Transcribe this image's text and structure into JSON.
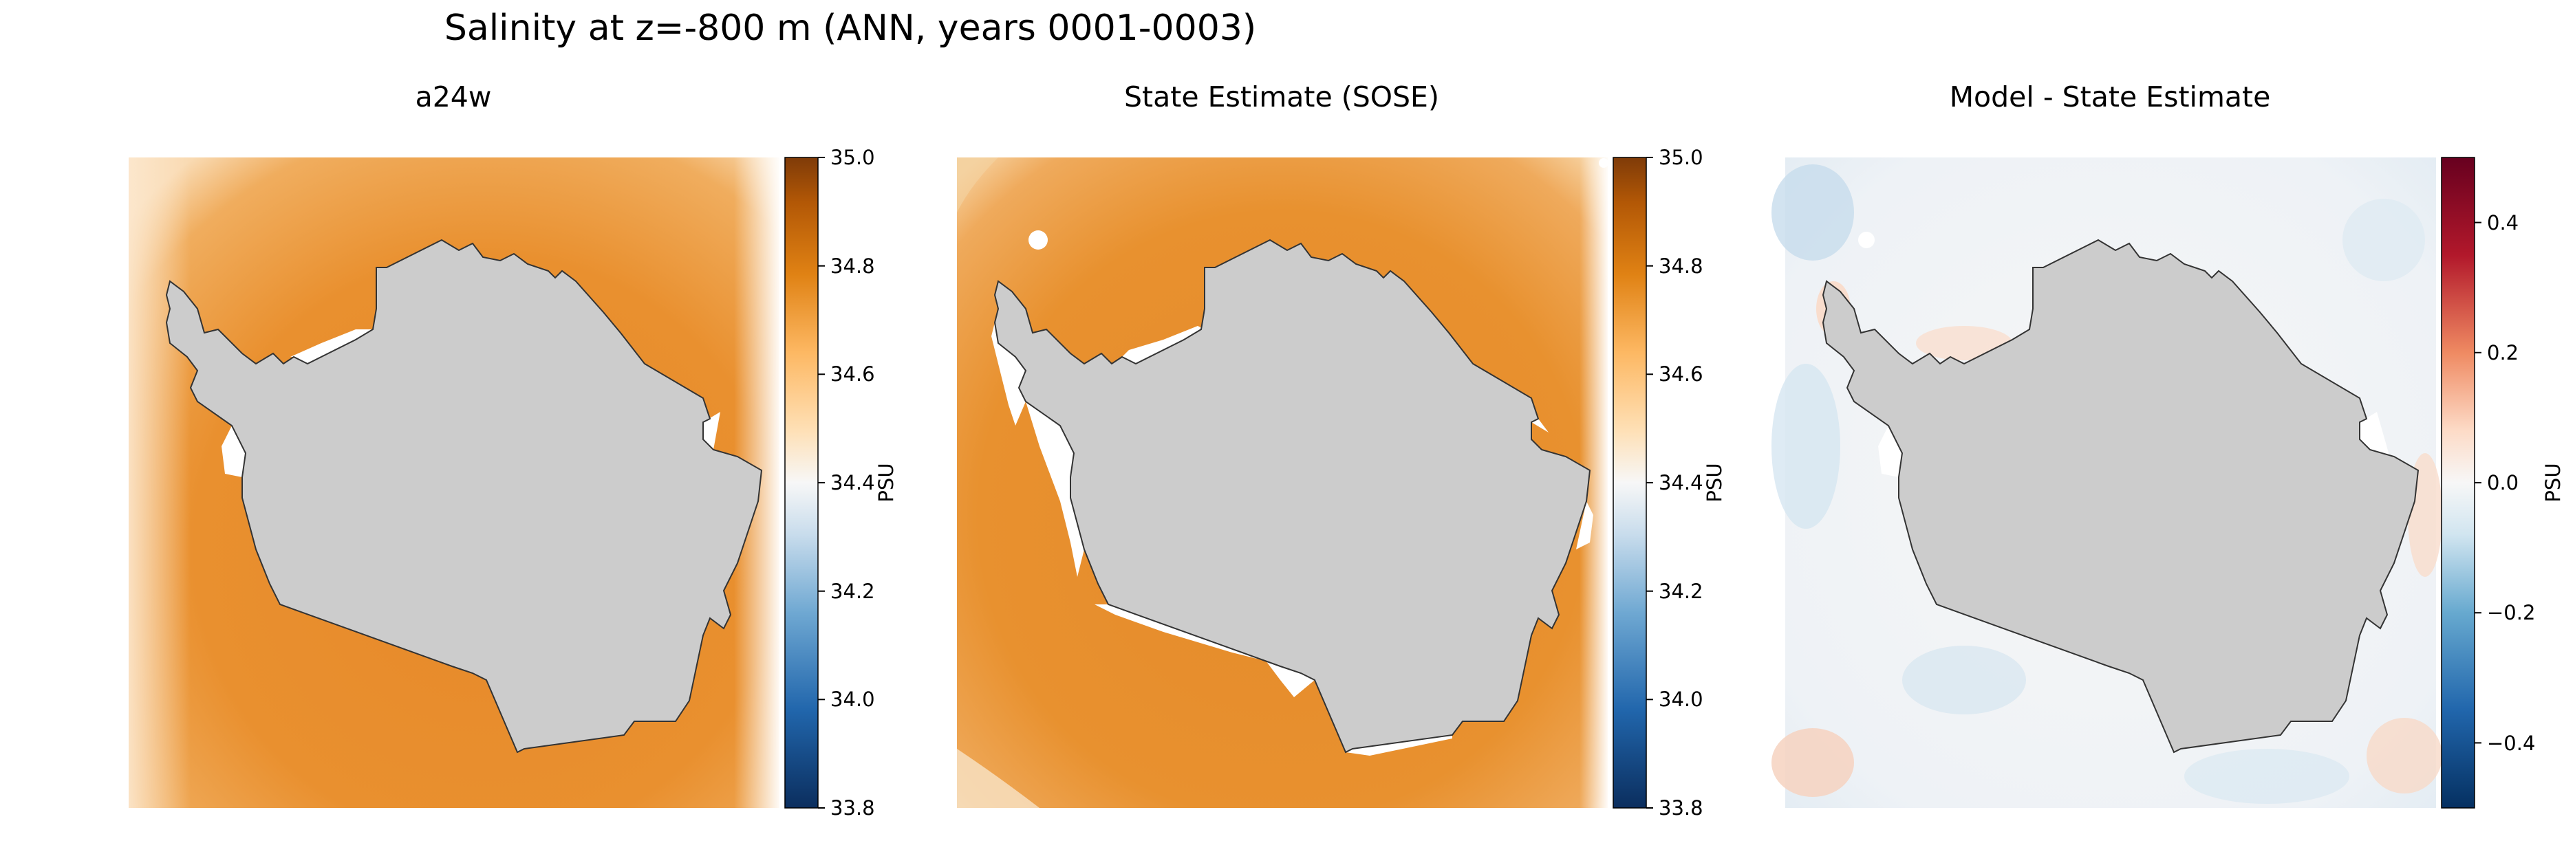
{
  "figure": {
    "title": "Salinity at z=-800 m (ANN, years 0001-0003)"
  },
  "panels": [
    {
      "title": "a24w",
      "colorbar": {
        "label": "PSU",
        "colormap": "PuOr_r",
        "range": [
          33.8,
          35.0
        ],
        "ticks": [
          "35.0",
          "34.8",
          "34.6",
          "34.4",
          "34.2",
          "34.0",
          "33.8"
        ]
      }
    },
    {
      "title": "State Estimate (SOSE)",
      "colorbar": {
        "label": "PSU",
        "colormap": "PuOr_r",
        "range": [
          33.8,
          35.0
        ],
        "ticks": [
          "35.0",
          "34.8",
          "34.6",
          "34.4",
          "34.2",
          "34.0",
          "33.8"
        ]
      }
    },
    {
      "title": "Model - State Estimate",
      "colorbar": {
        "label": "PSU",
        "colormap": "RdBu_r",
        "range": [
          -0.5,
          0.5
        ],
        "ticks": [
          "0.4",
          "0.2",
          "0.0",
          "−0.2",
          "−0.4"
        ]
      }
    }
  ],
  "colors": {
    "land": "#cccccc",
    "coastline": "#333333",
    "salinity_ocean": "#e8922f",
    "diff_ocean": "#f3f5f7"
  }
}
